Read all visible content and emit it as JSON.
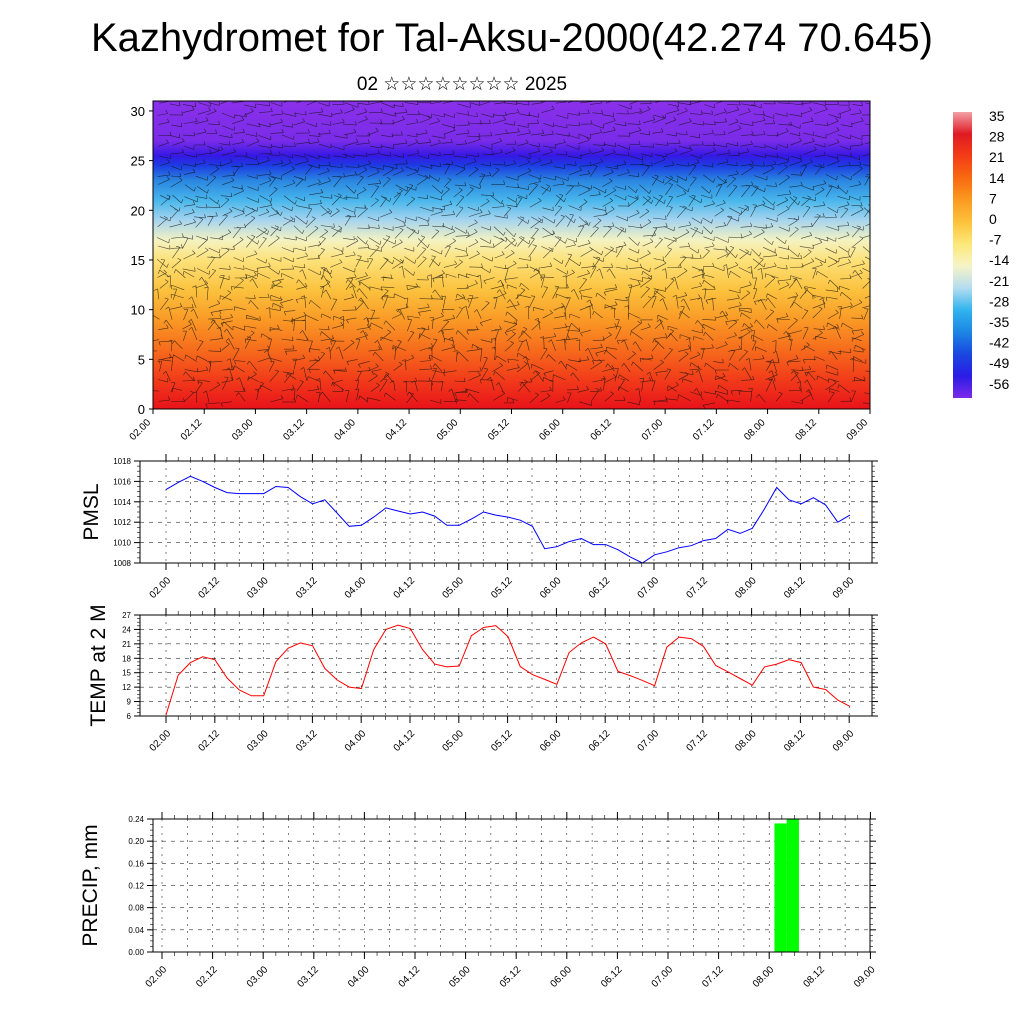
{
  "header": {
    "title": "Kazhydromet for Tal-Aksu-2000(42.274 70.645)",
    "subtitle": "02 ☆☆☆☆☆☆☆☆ 2025"
  },
  "time_ticks": [
    "02.00",
    "02.12",
    "03.00",
    "03.12",
    "04.00",
    "04.12",
    "05.00",
    "05.12",
    "06.00",
    "06.12",
    "07.00",
    "07.12",
    "08.00",
    "08.12",
    "09.00"
  ],
  "chart_data": [
    {
      "type": "heatmap",
      "panel": "cross-section",
      "y_ticks": [
        "0",
        "5",
        "10",
        "15",
        "20",
        "25",
        "30"
      ],
      "ylim": [
        0,
        31
      ],
      "colorbar": {
        "labels": [
          "35",
          "28",
          "21",
          "14",
          "7",
          "0",
          "-7",
          "-14",
          "-21",
          "-28",
          "-35",
          "-42",
          "-49",
          "-56"
        ],
        "colors": [
          "#f2a0a6",
          "#e01a24",
          "#f43c16",
          "#f86a10",
          "#fb9a20",
          "#fdc23a",
          "#fde87a",
          "#f6f4c8",
          "#b4dcf0",
          "#30b4ee",
          "#1c86e4",
          "#1a48e0",
          "#2a1ce6",
          "#7c2ae8"
        ]
      },
      "profile_layers": [
        {
          "level": 0,
          "color": "#e8121a"
        },
        {
          "level": 3,
          "color": "#f23c1a"
        },
        {
          "level": 6,
          "color": "#f66c1c"
        },
        {
          "level": 9,
          "color": "#fa9a26"
        },
        {
          "level": 12,
          "color": "#fbc23e"
        },
        {
          "level": 15,
          "color": "#fde27a"
        },
        {
          "level": 17,
          "color": "#f4f2c2"
        },
        {
          "level": 19,
          "color": "#a6d4ee"
        },
        {
          "level": 21,
          "color": "#48b6ec"
        },
        {
          "level": 23,
          "color": "#2a86e0"
        },
        {
          "level": 24.5,
          "color": "#1c3ce2"
        },
        {
          "level": 25.5,
          "color": "#3618e4"
        },
        {
          "level": 27,
          "color": "#7a2ce8"
        },
        {
          "level": 31,
          "color": "#8a30ea"
        }
      ]
    },
    {
      "type": "line",
      "panel": "pmsl",
      "ylabel": "PMSL",
      "y_ticks": [
        "1008",
        "1010",
        "1012",
        "1014",
        "1016",
        "1018"
      ],
      "ylim": [
        1008,
        1018
      ],
      "color": "#0000ff",
      "x": [
        0,
        1,
        2,
        3,
        4,
        5,
        6,
        7,
        8,
        9,
        10,
        11,
        12,
        13,
        14,
        15,
        16,
        17,
        18,
        19,
        20,
        21,
        22,
        23,
        24,
        25,
        26,
        27,
        28,
        29,
        30,
        31,
        32,
        33,
        34,
        35,
        36,
        37,
        38,
        39,
        40,
        41,
        42,
        43,
        44,
        45,
        46,
        47,
        48,
        49,
        50,
        51,
        52,
        53,
        54,
        55,
        56
      ],
      "values": [
        1015.2,
        1015.9,
        1016.5,
        1016.0,
        1015.4,
        1014.9,
        1014.8,
        1014.8,
        1014.8,
        1015.5,
        1015.4,
        1014.5,
        1013.8,
        1014.2,
        1012.9,
        1011.6,
        1011.7,
        1012.5,
        1013.4,
        1013.1,
        1012.8,
        1013.0,
        1012.6,
        1011.7,
        1011.7,
        1012.3,
        1013.0,
        1012.7,
        1012.5,
        1012.2,
        1011.6,
        1009.4,
        1009.6,
        1010.1,
        1010.4,
        1009.8,
        1009.8,
        1009.3,
        1008.6,
        1008.0,
        1008.8,
        1009.1,
        1009.5,
        1009.7,
        1010.2,
        1010.4,
        1011.3,
        1010.9,
        1011.4,
        1013.3,
        1015.4,
        1014.2,
        1013.8,
        1014.4,
        1013.7,
        1012.0,
        1012.7
      ]
    },
    {
      "type": "line",
      "panel": "temp",
      "ylabel": "TEMP at 2 M",
      "y_ticks": [
        "6",
        "9",
        "12",
        "15",
        "18",
        "21",
        "24",
        "27"
      ],
      "ylim": [
        6,
        27
      ],
      "color": "#ff0000",
      "x": [
        0,
        1,
        2,
        3,
        4,
        5,
        6,
        7,
        8,
        9,
        10,
        11,
        12,
        13,
        14,
        15,
        16,
        17,
        18,
        19,
        20,
        21,
        22,
        23,
        24,
        25,
        26,
        27,
        28,
        29,
        30,
        31,
        32,
        33,
        34,
        35,
        36,
        37,
        38,
        39,
        40,
        41,
        42,
        43,
        44,
        45,
        46,
        47,
        48,
        49,
        50,
        51,
        52,
        53,
        54,
        55,
        56
      ],
      "values": [
        6.2,
        14.5,
        17.1,
        18.3,
        17.7,
        13.9,
        11.4,
        10.2,
        10.2,
        17.3,
        20.1,
        21.2,
        20.6,
        15.9,
        13.5,
        12.0,
        11.7,
        19.8,
        24.0,
        24.9,
        24.2,
        19.8,
        16.8,
        16.2,
        16.4,
        22.7,
        24.4,
        24.8,
        22.5,
        16.3,
        14.6,
        13.6,
        12.6,
        19.2,
        21.2,
        22.4,
        21.0,
        15.3,
        14.4,
        13.4,
        12.3,
        20.3,
        22.4,
        22.1,
        20.5,
        16.5,
        15.2,
        13.8,
        12.4,
        16.2,
        16.8,
        17.7,
        17.1,
        12.0,
        11.5,
        9.3,
        8.0
      ]
    },
    {
      "type": "bar",
      "panel": "precip",
      "ylabel": "PRECIP, mm",
      "y_ticks": [
        "0.00",
        "0.04",
        "0.08",
        "0.12",
        "0.16",
        "0.20",
        "0.24"
      ],
      "ylim": [
        0,
        0.24
      ],
      "color": "#00ff00",
      "x": [
        50,
        51
      ],
      "values": [
        0.232,
        0.24
      ]
    }
  ]
}
